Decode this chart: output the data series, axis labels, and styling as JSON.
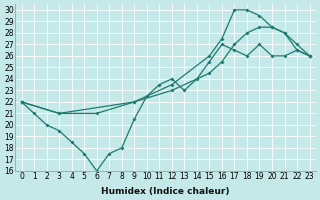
{
  "xlabel": "Humidex (Indice chaleur)",
  "background_color": "#c5e8e8",
  "line_color": "#1e7a70",
  "xlim": [
    -0.5,
    23.5
  ],
  "ylim": [
    16,
    30.5
  ],
  "xticks": [
    0,
    1,
    2,
    3,
    4,
    5,
    6,
    7,
    8,
    9,
    10,
    11,
    12,
    13,
    14,
    15,
    16,
    17,
    18,
    19,
    20,
    21,
    22,
    23
  ],
  "yticks": [
    16,
    17,
    18,
    19,
    20,
    21,
    22,
    23,
    24,
    25,
    26,
    27,
    28,
    29,
    30
  ],
  "line1_x": [
    0,
    1,
    2,
    3,
    4,
    5,
    6,
    7,
    8,
    9,
    10,
    11,
    12,
    13,
    14,
    15,
    16,
    17,
    18,
    19,
    20,
    21,
    22,
    23
  ],
  "line1_y": [
    22,
    21,
    20,
    19.5,
    18.5,
    17.5,
    16,
    17.5,
    18,
    20.5,
    22.5,
    23.5,
    24,
    23,
    24,
    25.5,
    27,
    26.5,
    26,
    27,
    26,
    26,
    26.5,
    26
  ],
  "line2_x": [
    0,
    3,
    9,
    12,
    15,
    16,
    17,
    18,
    19,
    20,
    21,
    22,
    23
  ],
  "line2_y": [
    22,
    21,
    22,
    23,
    24.5,
    25.5,
    27,
    28,
    28.5,
    28.5,
    28,
    27,
    26
  ],
  "line3_x": [
    0,
    3,
    6,
    9,
    12,
    15,
    16,
    17,
    18,
    19,
    20,
    21,
    22,
    23
  ],
  "line3_y": [
    22,
    21,
    21,
    22,
    23.5,
    26,
    27.5,
    30,
    30,
    29.5,
    28.5,
    28,
    26.5,
    26
  ],
  "xlabel_fontsize": 6.5,
  "tick_fontsize": 5.5
}
